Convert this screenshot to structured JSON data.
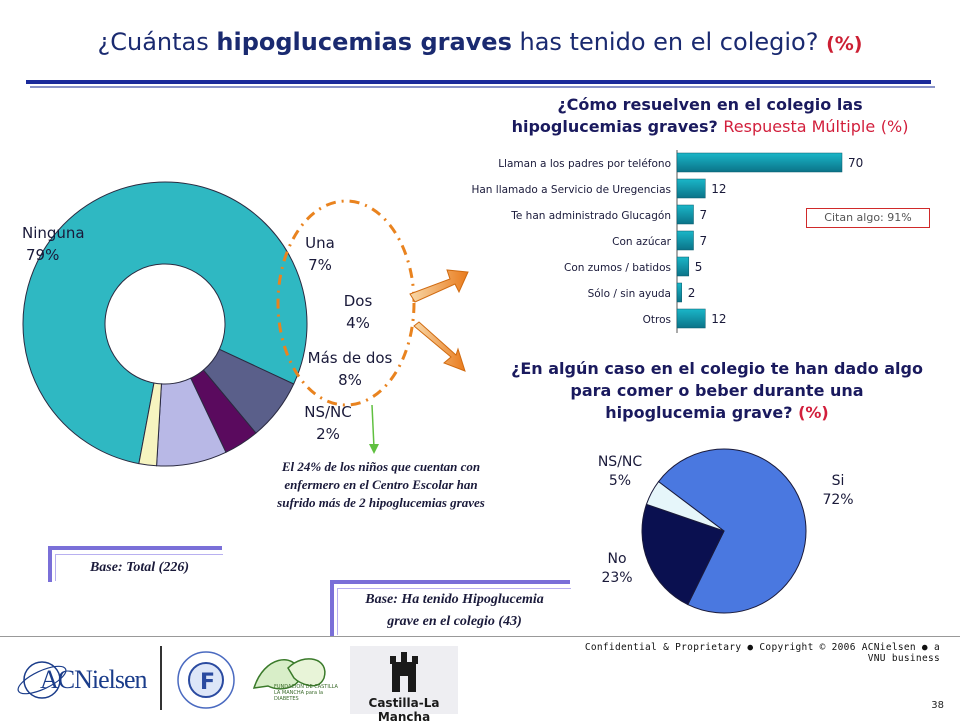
{
  "title": {
    "pre": "¿Cuántas ",
    "bold": "hipoglucemias graves",
    "post": " has tenido en el colegio? ",
    "unit": "(%)"
  },
  "question1": {
    "line1": "¿Cómo resuelven en el colegio las",
    "line2a": "hipoglucemias graves? ",
    "line2b": "Respuesta Múltiple",
    "unit": "(%)"
  },
  "question2": {
    "line1": "¿En algún caso en el colegio te han dado algo",
    "line2": "para comer o beber durante una",
    "line3a": "hipoglucemia grave? ",
    "unit": "(%)"
  },
  "citan_label": "Citan algo: 91%",
  "note": {
    "line1": "El 24% de los niños que cuentan con",
    "line2": "enfermero en el Centro Escolar han",
    "line3": "sufrido más de 2 hipoglucemias graves"
  },
  "base1": "Base: Total (226)",
  "base2": {
    "line1": "Base: Ha tenido Hipoglucemia",
    "line2": "grave en el colegio (43)"
  },
  "footer": {
    "confidential": "Confidential & Proprietary ● Copyright © 2006 ACNielsen ● a VNU business",
    "page": "38"
  },
  "logos": {
    "acnielsen": "ACNielsen",
    "fundacion_ring": "FUNDACION PARA LA DIABETES",
    "fundacion_clm": "FUNDACION DE CASTILLA LA MANCHA para la DIABETES",
    "castilla": "Castilla-La Mancha"
  },
  "colors": {
    "accent": "#1a2a9a",
    "red": "#d21f3c",
    "teal": "#1ab0c4"
  },
  "chart_data": [
    {
      "type": "pie",
      "donut": true,
      "slices": [
        {
          "name": "Ninguna",
          "value": 79,
          "label": "79%",
          "color": "#2fb8c2"
        },
        {
          "name": "Una",
          "value": 7,
          "label": "7%",
          "color": "#5a5f8a"
        },
        {
          "name": "Dos",
          "value": 4,
          "label": "4%",
          "color": "#5a0a5e"
        },
        {
          "name": "Más de dos",
          "value": 8,
          "label": "8%",
          "color": "#b8b8e6"
        },
        {
          "name": "NS/NC",
          "value": 2,
          "label": "2%",
          "color": "#f6f4c0"
        }
      ]
    },
    {
      "type": "bar",
      "orientation": "horizontal",
      "categories": [
        "Llaman a los padres por teléfono",
        "Han llamado a Servicio de Uregencias",
        "Te han administrado Glucagón",
        "Con azúcar",
        "Con zumos / batidos",
        "Sólo / sin ayuda",
        "Otros"
      ],
      "values": [
        70,
        12,
        7,
        7,
        5,
        2,
        12
      ],
      "xlim": [
        0,
        70
      ]
    },
    {
      "type": "pie",
      "slices": [
        {
          "name": "Si",
          "value": 72,
          "label": "72%",
          "color": "#4a78e0"
        },
        {
          "name": "No",
          "value": 23,
          "label": "23%",
          "color": "#0a1050"
        },
        {
          "name": "NS/NC",
          "value": 5,
          "label": "5%",
          "color": "#e6f6fa"
        }
      ]
    }
  ]
}
